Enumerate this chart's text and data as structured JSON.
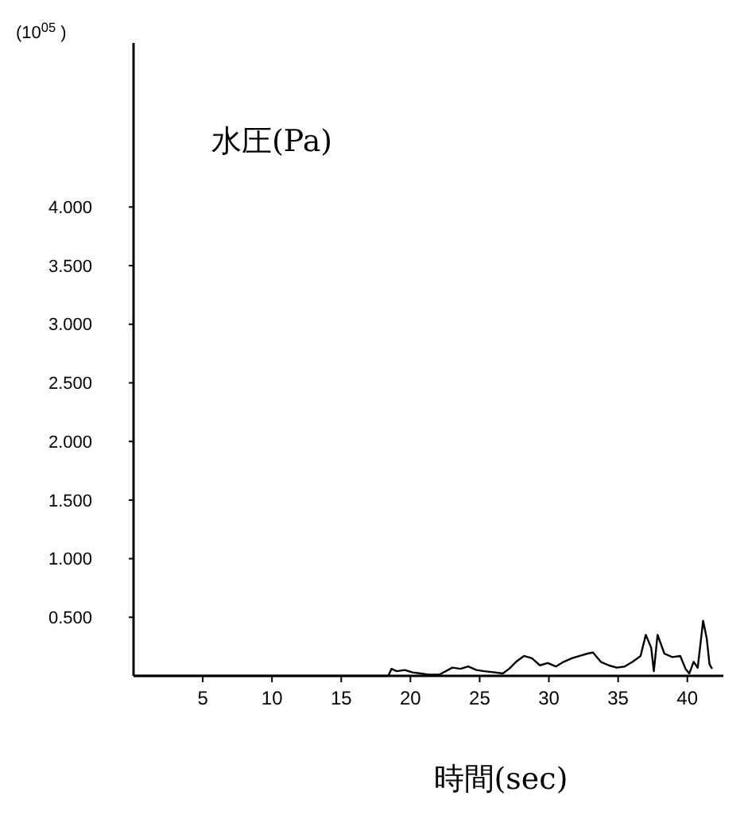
{
  "chart_data": {
    "type": "line",
    "title": "水圧(Pa)",
    "xlabel": "時間(sec)",
    "ylabel": "(10$^{05}$ )",
    "color": "#000000",
    "line_style": "solid",
    "grid": false,
    "xlim": [
      0,
      42.6
    ],
    "xticks": [
      5,
      10,
      15,
      20,
      25,
      30,
      35,
      40
    ],
    "ylim": [
      0,
      5.4
    ],
    "yticks": [
      {
        "value": 0.5,
        "label": "0.500"
      },
      {
        "value": 1,
        "label": "1.000"
      },
      {
        "value": 1.5,
        "label": "1.500"
      },
      {
        "value": 2,
        "label": "2.000"
      },
      {
        "value": 2.5,
        "label": "2.500"
      },
      {
        "value": 3,
        "label": "3.000"
      },
      {
        "value": 3.5,
        "label": "3.500"
      },
      {
        "value": 4,
        "label": "4.000"
      }
    ],
    "x": [
      0,
      18.4,
      18.63,
      19.02,
      19.59,
      20.16,
      20.74,
      21.31,
      22.08,
      23.03,
      23.61,
      24.18,
      24.76,
      25.33,
      26.1,
      26.67,
      27.13,
      27.63,
      28.2,
      28.78,
      29.35,
      29.92,
      30.5,
      31.07,
      31.65,
      32.22,
      32.79,
      33.18,
      33.75,
      34.32,
      34.9,
      35.47,
      36.05,
      36.62,
      37.0,
      37.39,
      37.58,
      37.85,
      38.34,
      38.92,
      39.49,
      39.87,
      40.14,
      40.45,
      40.75,
      41.14,
      41.4,
      41.6,
      41.79
    ],
    "values": [
      0,
      0,
      0.06,
      0.04,
      0.05,
      0.03,
      0.02,
      0.01,
      0.01,
      0.07,
      0.06,
      0.08,
      0.05,
      0.04,
      0.03,
      0.02,
      0.06,
      0.12,
      0.17,
      0.15,
      0.09,
      0.11,
      0.08,
      0.12,
      0.15,
      0.17,
      0.19,
      0.2,
      0.12,
      0.09,
      0.07,
      0.08,
      0.12,
      0.17,
      0.35,
      0.24,
      0.04,
      0.35,
      0.19,
      0.16,
      0.17,
      0.06,
      0.02,
      0.12,
      0.07,
      0.47,
      0.32,
      0.1,
      0.06
    ]
  }
}
